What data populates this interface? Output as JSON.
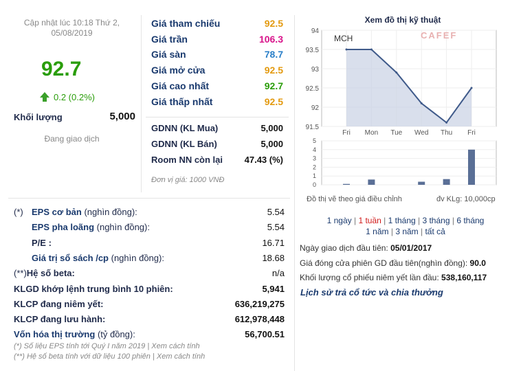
{
  "header": {
    "update_line1": "Cập nhật lúc 10:18 Thứ 2,",
    "update_line2": "05/08/2019",
    "price": "92.7",
    "change": "0.2 (0.2%)",
    "volume_label": "Khối lượng",
    "volume_value": "5,000",
    "trading_status": "Đang giao dịch"
  },
  "prices": [
    {
      "label": "Giá tham chiếu",
      "value": "92.5",
      "color": "#e39a10"
    },
    {
      "label": "Giá trần",
      "value": "106.3",
      "color": "#d8138a"
    },
    {
      "label": "Giá sàn",
      "value": "78.7",
      "color": "#2a7fc8"
    },
    {
      "label": "Giá mở cửa",
      "value": "92.5",
      "color": "#e39a10"
    },
    {
      "label": "Giá cao nhất",
      "value": "92.7",
      "color": "#2a9d0a"
    },
    {
      "label": "Giá thấp nhất",
      "value": "92.5",
      "color": "#e39a10"
    }
  ],
  "foreign": [
    {
      "label": "GDNN (KL Mua)",
      "value": "5,000"
    },
    {
      "label": "GDNN (KL Bán)",
      "value": "5,000"
    },
    {
      "label": "Room NN còn lại",
      "value": "47.43 (%)"
    }
  ],
  "unit_note": "Đơn vị giá: 1000 VNĐ",
  "chart": {
    "title": "Xem đồ thị kỹ thuật",
    "symbol": "MCH",
    "watermark": "CAFEF",
    "note_left": "Đồ thị vẽ theo giá điều chỉnh",
    "note_right": "đv KLg: 10,000cp"
  },
  "chart_data": {
    "type": "line",
    "x": [
      "Fri",
      "Mon",
      "Tue",
      "Wed",
      "Thu",
      "Fri"
    ],
    "series": [
      {
        "values": [
          93.5,
          93.5,
          92.9,
          92.1,
          91.6,
          92.5
        ]
      }
    ],
    "ylim": [
      91.5,
      94
    ],
    "yticks": [
      "94",
      "93.5",
      "93",
      "92.5",
      "92",
      "91.5"
    ],
    "volume": {
      "type": "bar",
      "values": [
        0.1,
        0.6,
        0,
        0.35,
        0.65,
        4
      ],
      "ylim": [
        0,
        5
      ],
      "yticks": [
        "5",
        "4",
        "3",
        "2",
        "1",
        "0"
      ]
    },
    "grid": true
  },
  "ranges": {
    "items": [
      "1 ngày",
      "1 tuần",
      "1 tháng",
      "3 tháng",
      "6 tháng",
      "1 năm",
      "3 năm",
      "tất cả"
    ],
    "active_index": 1
  },
  "listing": {
    "first_day_label": "Ngày giao dịch đầu tiên:",
    "first_day_value": "05/01/2017",
    "first_close_label": "Giá đóng cửa phiên GD đầu tiên(nghìn đồng):",
    "first_close_value": "90.0",
    "first_volume_label": "Khối lượng cổ phiếu niêm yết lần đầu:",
    "first_volume_value": "538,160,117",
    "history_link": "Lịch sử trả cổ tức và chia thưởng"
  },
  "stats": [
    {
      "marker": "(*)",
      "label": "EPS cơ bản",
      "suffix": "(nghìn đồng):",
      "value": "5.54",
      "bold": false
    },
    {
      "marker": "",
      "label": "EPS pha loãng",
      "suffix": "(nghìn đồng):",
      "value": "5.54",
      "bold": false
    },
    {
      "marker": "",
      "label": "P/E :",
      "suffix": "",
      "value": "16.71",
      "bold": false
    },
    {
      "marker": "",
      "label": "Giá trị sổ sách /cp",
      "suffix": "(nghìn đồng):",
      "value": "18.68",
      "bold": false
    },
    {
      "marker": "(**)",
      "label": "Hệ số beta:",
      "suffix": "",
      "value": "n/a",
      "bold": false,
      "nomarkerwidth": true
    },
    {
      "marker": "",
      "label": "KLGD khớp lệnh trung bình 10 phiên:",
      "suffix": "",
      "value": "5,941",
      "bold": true,
      "full": true
    },
    {
      "marker": "",
      "label": "KLCP đang niêm yết:",
      "suffix": "",
      "value": "636,219,275",
      "bold": true,
      "full": true
    },
    {
      "marker": "",
      "label": "KLCP đang lưu hành:",
      "suffix": "",
      "value": "612,978,448",
      "bold": true,
      "full": true
    },
    {
      "marker": "",
      "label": "Vốn hóa thị trường",
      "suffix": "(tỷ đồng):",
      "value": "56,700.51",
      "bold": true,
      "full": true
    }
  ],
  "footnotes": [
    {
      "text": "(*) Số liệu EPS tính tới Quý I năm 2019 | ",
      "link": "Xem cách tính"
    },
    {
      "text": "(**) Hệ số beta tính với dữ liệu 100 phiên | ",
      "link": "Xem cách tính"
    }
  ]
}
